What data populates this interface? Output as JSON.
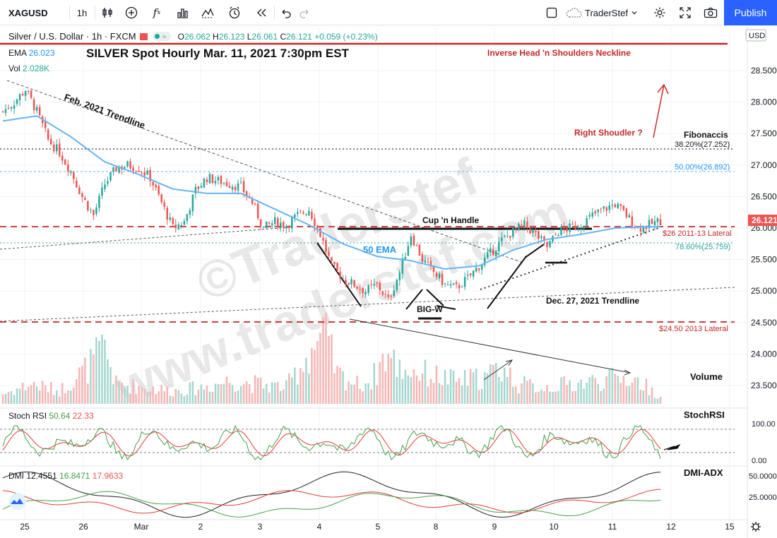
{
  "toolbar": {
    "symbol": "XAGUSD",
    "interval": "1h",
    "user": "TraderStef",
    "publish_label": "Publish",
    "icons": [
      "bar-style-icon",
      "add-symbol-icon",
      "indicators-icon",
      "templates-icon",
      "alert-icon",
      "replay-icon",
      "undo-icon",
      "redo-icon",
      "layout-icon",
      "cloud-icon",
      "settings-icon",
      "fullscreen-icon",
      "snapshot-icon"
    ]
  },
  "legend": {
    "title": "Silver / U.S. Dollar · 1h · FXCM",
    "open_label": "O",
    "open": "26.062",
    "high_label": "H",
    "high": "26.123",
    "low_label": "L",
    "low": "26.061",
    "close_label": "C",
    "close": "26.121",
    "change": "+0.059 (+0.23%)",
    "ema_label": "EMA",
    "ema_value": "26.023",
    "vol_label": "Vol",
    "vol_value": "2.028K"
  },
  "colors": {
    "up": "#26a69a",
    "down": "#ef5350",
    "ema": "#64b5f6",
    "stoch_k": "#43a047",
    "stoch_d": "#e53935",
    "dmi_plus": "#43a047",
    "dmi_minus": "#e53935",
    "adx": "#212121",
    "annotation_red": "#c62828",
    "price_tag": "#ef5350"
  },
  "chart_data": {
    "type": "candlestick",
    "title": "SILVER Spot Hourly Mar. 11, 2021 7:30pm EST",
    "x_ticks": [
      "25",
      "26",
      "Mar",
      "2",
      "3",
      "4",
      "5",
      "8",
      "9",
      "10",
      "11",
      "12",
      "15"
    ],
    "y_ticks": [
      "28.500",
      "28.000",
      "27.500",
      "27.000",
      "26.500",
      "26.000",
      "25.500",
      "25.000",
      "24.500",
      "24.000",
      "23.500"
    ],
    "ylim": [
      23.3,
      28.8
    ],
    "currency": "USD",
    "last_price": "26.121",
    "price_path": [
      [
        0,
        27.85
      ],
      [
        4,
        28.0
      ],
      [
        8,
        28.2
      ],
      [
        12,
        27.85
      ],
      [
        16,
        27.4
      ],
      [
        20,
        27.2
      ],
      [
        24,
        26.9
      ],
      [
        28,
        26.5
      ],
      [
        32,
        26.2
      ],
      [
        36,
        26.7
      ],
      [
        40,
        26.95
      ],
      [
        44,
        27.0
      ],
      [
        48,
        26.95
      ],
      [
        52,
        26.8
      ],
      [
        56,
        26.4
      ],
      [
        60,
        26.0
      ],
      [
        64,
        26.1
      ],
      [
        68,
        26.6
      ],
      [
        72,
        26.8
      ],
      [
        76,
        26.75
      ],
      [
        80,
        26.7
      ],
      [
        84,
        26.65
      ],
      [
        88,
        26.4
      ],
      [
        92,
        26.0
      ],
      [
        96,
        26.1
      ],
      [
        100,
        26.05
      ],
      [
        104,
        26.2
      ],
      [
        108,
        26.3
      ],
      [
        112,
        25.9
      ],
      [
        116,
        25.4
      ],
      [
        120,
        25.2
      ],
      [
        124,
        25.1
      ],
      [
        128,
        25.0
      ],
      [
        132,
        25.1
      ],
      [
        136,
        24.85
      ],
      [
        140,
        25.3
      ],
      [
        144,
        25.9
      ],
      [
        148,
        25.5
      ],
      [
        152,
        25.3
      ],
      [
        156,
        25.1
      ],
      [
        160,
        25.05
      ],
      [
        164,
        25.2
      ],
      [
        168,
        25.4
      ],
      [
        172,
        25.6
      ],
      [
        176,
        25.8
      ],
      [
        180,
        25.95
      ],
      [
        184,
        26.05
      ],
      [
        188,
        25.9
      ],
      [
        192,
        25.7
      ],
      [
        196,
        25.95
      ],
      [
        200,
        26.0
      ],
      [
        204,
        26.05
      ],
      [
        208,
        26.2
      ],
      [
        212,
        26.3
      ],
      [
        216,
        26.38
      ],
      [
        220,
        26.2
      ],
      [
        224,
        26.0
      ],
      [
        228,
        26.05
      ],
      [
        232,
        26.12
      ]
    ],
    "ema_path": [
      [
        0,
        27.7
      ],
      [
        12,
        27.78
      ],
      [
        24,
        27.45
      ],
      [
        36,
        27.05
      ],
      [
        48,
        26.85
      ],
      [
        60,
        26.62
      ],
      [
        72,
        26.55
      ],
      [
        84,
        26.55
      ],
      [
        96,
        26.3
      ],
      [
        108,
        26.05
      ],
      [
        120,
        25.75
      ],
      [
        132,
        25.55
      ],
      [
        144,
        25.48
      ],
      [
        156,
        25.35
      ],
      [
        168,
        25.4
      ],
      [
        180,
        25.65
      ],
      [
        192,
        25.82
      ],
      [
        204,
        25.9
      ],
      [
        216,
        26.0
      ],
      [
        228,
        26.02
      ]
    ],
    "volume_path": [
      [
        0,
        0.15
      ],
      [
        10,
        0.3
      ],
      [
        20,
        0.2
      ],
      [
        30,
        0.55
      ],
      [
        36,
        0.85
      ],
      [
        40,
        0.3
      ],
      [
        50,
        0.25
      ],
      [
        60,
        0.2
      ],
      [
        70,
        0.25
      ],
      [
        80,
        0.35
      ],
      [
        90,
        0.3
      ],
      [
        100,
        0.25
      ],
      [
        110,
        0.9
      ],
      [
        114,
        1.0
      ],
      [
        118,
        0.45
      ],
      [
        125,
        0.3
      ],
      [
        130,
        0.35
      ],
      [
        135,
        0.75
      ],
      [
        140,
        0.55
      ],
      [
        150,
        0.45
      ],
      [
        160,
        0.35
      ],
      [
        170,
        0.4
      ],
      [
        176,
        0.55
      ],
      [
        182,
        0.3
      ],
      [
        190,
        0.25
      ],
      [
        200,
        0.3
      ],
      [
        210,
        0.35
      ],
      [
        220,
        0.4
      ],
      [
        226,
        0.3
      ],
      [
        232,
        0.1
      ]
    ],
    "annotations": {
      "inverse_hs_neckline": "Inverse Head 'n Shoulders Neckline",
      "feb_trendline": "Feb. 2021 Trendline",
      "right_shoulder": "Right Shoudler ?",
      "fibonacci": "Fibonaccis",
      "fib_382": "38.20%(27.252)",
      "fib_500": "50.00%(26.892)",
      "fib_786": "78.60%(25.759)",
      "cup_handle": "Cup 'n Handle",
      "ema_label": "50 EMA",
      "big_w": "BIG-W",
      "dec_trendline": "Dec. 27, 2021 Trendline",
      "lateral_26": "$26 2011-13 Lateral",
      "lateral_2450": "$24.50 2013 Lateral",
      "volume": "Volume",
      "watermark_1": "©TraderStef",
      "watermark_2": "www.traderstef.com"
    },
    "levels": {
      "fib_382": 27.252,
      "fib_500": 26.892,
      "lateral_26": 26.0,
      "fib_786": 25.759,
      "lateral_2450": 24.5,
      "neckline": 28.82
    }
  },
  "stoch_rsi": {
    "label": "Stoch RSI",
    "k": "50.64",
    "d": "22.33",
    "panel_title": "StochRSI",
    "y_ticks": [
      "100.00",
      "0.00"
    ]
  },
  "dmi": {
    "label": "DMI",
    "adx": "12.4551",
    "plus_di": "16.8471",
    "minus_di": "17.9633",
    "panel_title": "DMI-ADX",
    "y_ticks": [
      "50.0000",
      "25.0000"
    ]
  }
}
